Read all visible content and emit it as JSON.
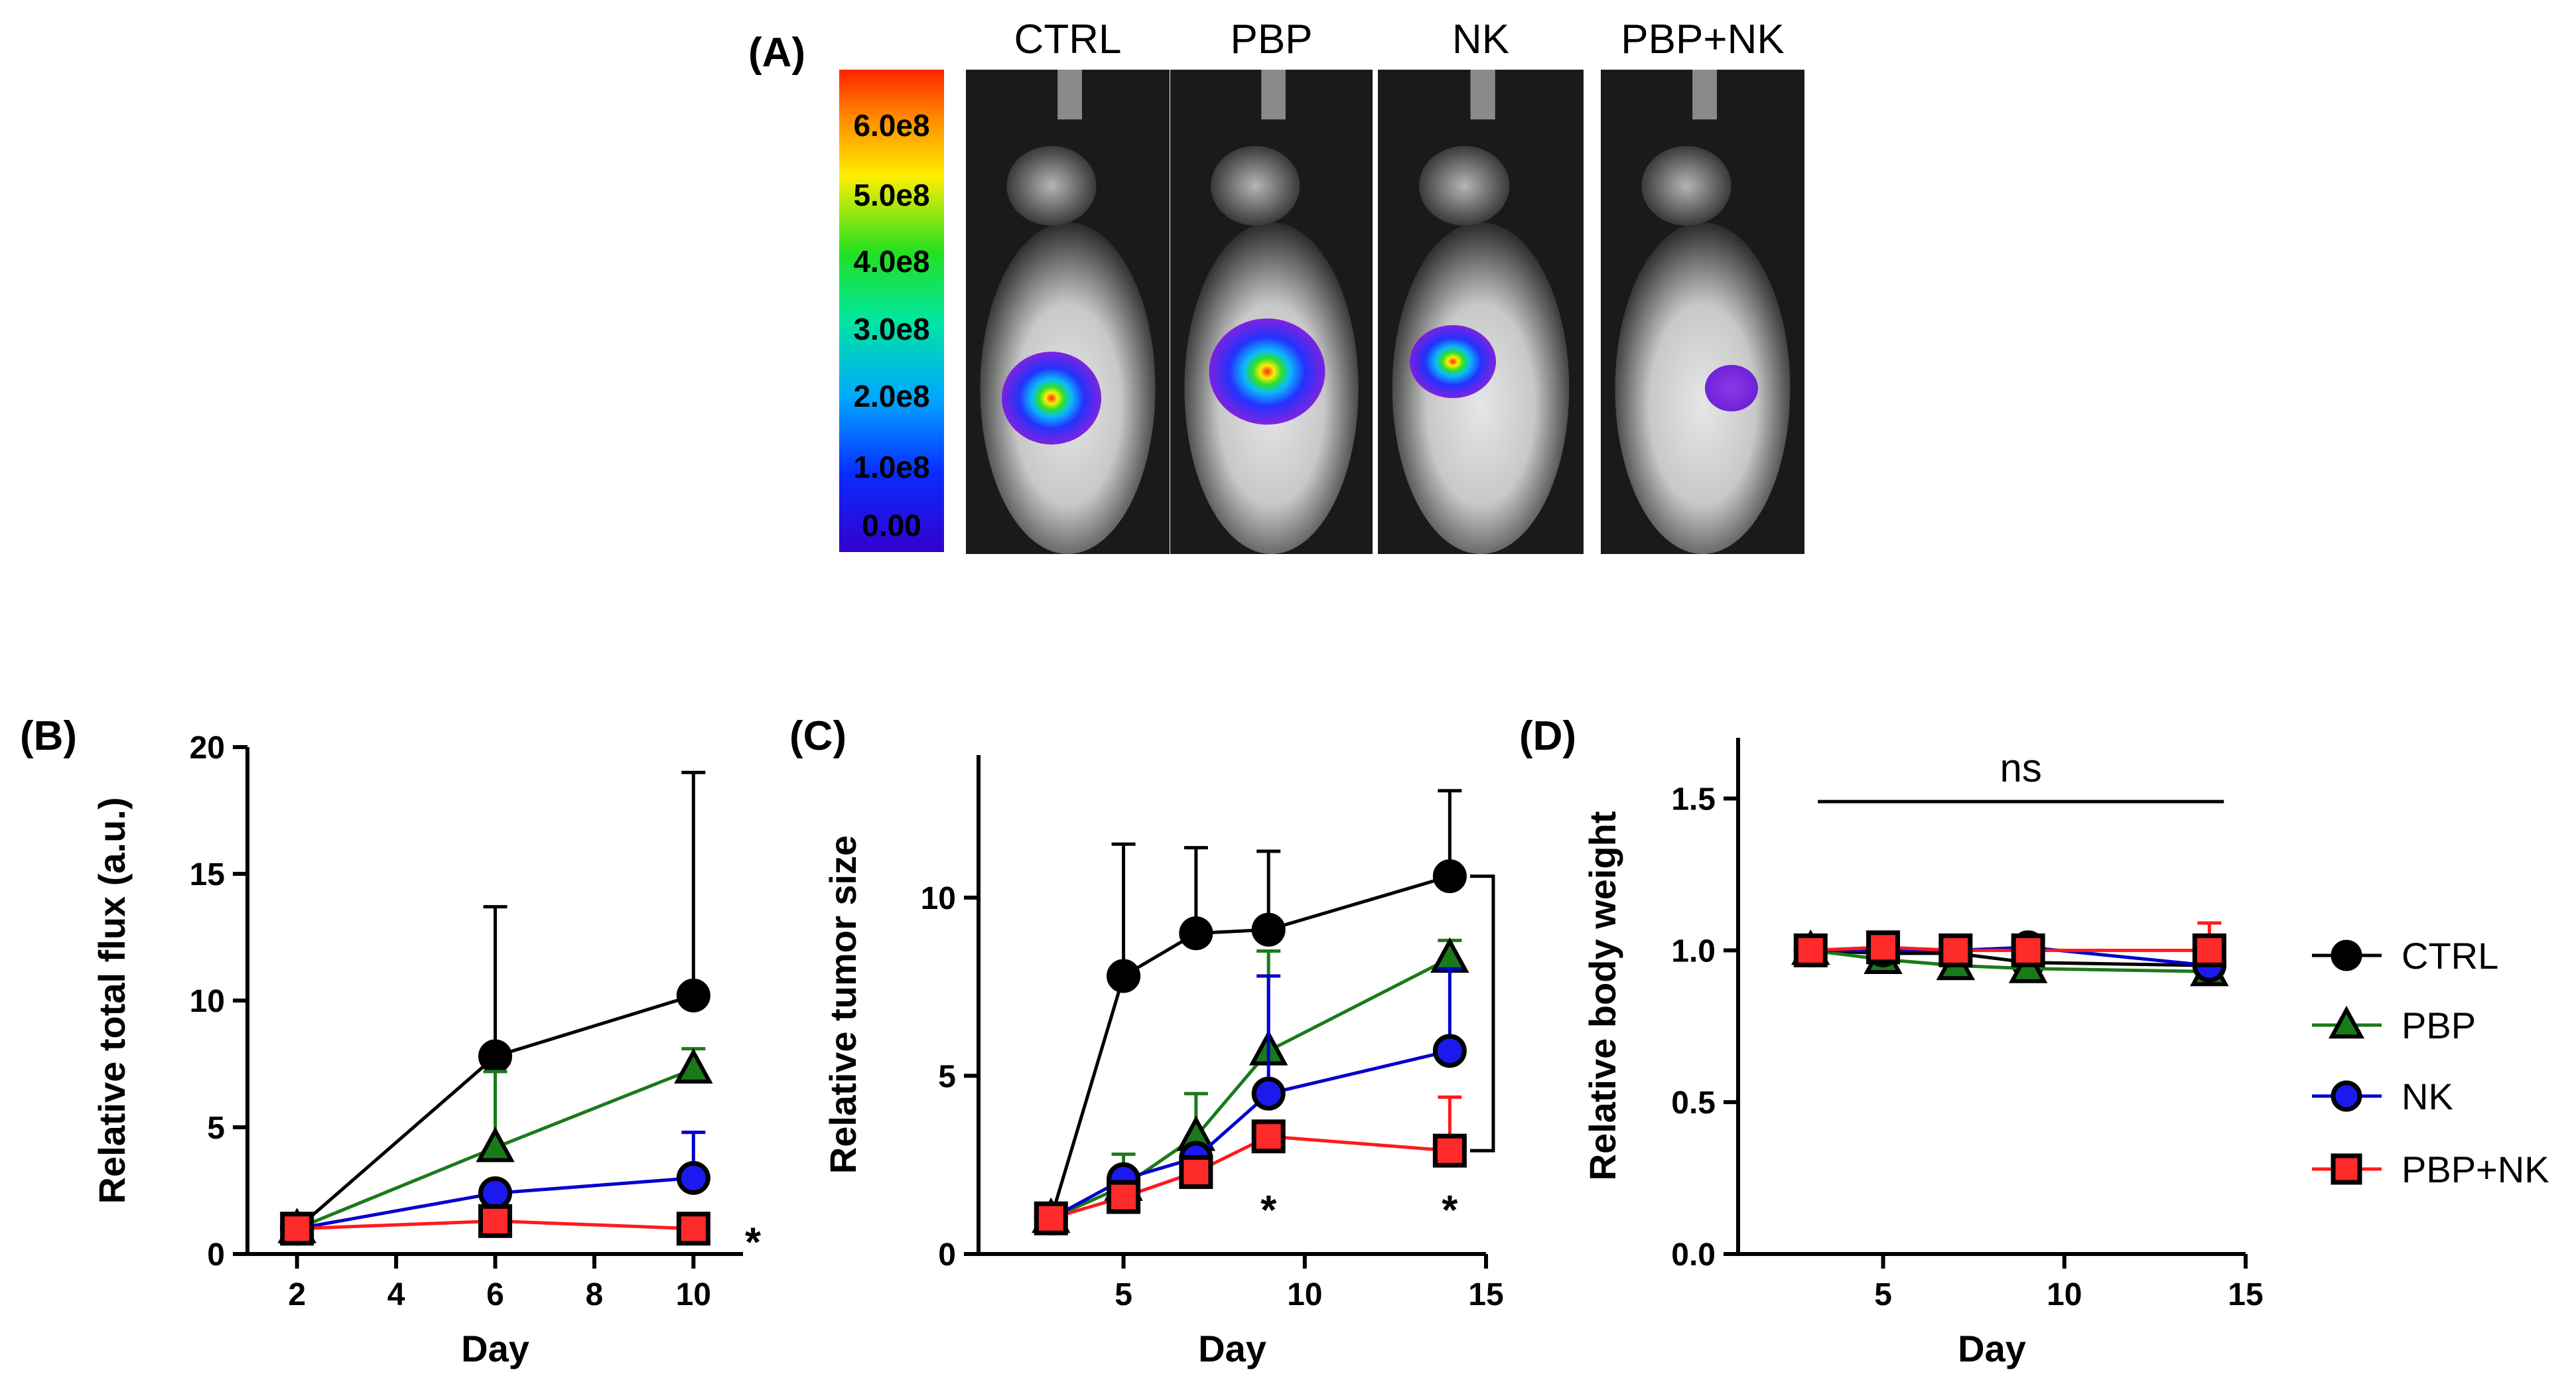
{
  "panel_a": {
    "panel_label": "(A)",
    "colorbar_ticks": [
      "6.0e8",
      "5.0e8",
      "4.0e8",
      "3.0e8",
      "2.0e8",
      "1.0e8",
      "0.00"
    ],
    "image_labels": [
      "CTRL",
      "PBP",
      "NK",
      "PBP+NK"
    ],
    "signal_intensity": [
      0.9,
      0.8,
      0.6,
      0.2
    ],
    "colors": {
      "image_bg": "#1a1a1a",
      "cb_top": "#ff2200",
      "cb_bottom": "#3300cc"
    }
  },
  "legend": {
    "items": [
      {
        "label": "CTRL",
        "color": "#000000",
        "fill": "#000000",
        "marker": "circle"
      },
      {
        "label": "PBP",
        "color": "#1a7a1a",
        "fill": "#1a7a1a",
        "marker": "triangle"
      },
      {
        "label": "NK",
        "color": "#0000cc",
        "fill": "#1a1aee",
        "marker": "circle"
      },
      {
        "label": "PBP+NK",
        "color": "#ff1a1a",
        "fill": "#ff2a2a",
        "marker": "square"
      }
    ]
  },
  "chart_data": [
    {
      "panel_label": "(B)",
      "type": "line",
      "xlabel": "Day",
      "ylabel": "Relative total flux  (a.u.)",
      "xlim": [
        1,
        11
      ],
      "ylim": [
        0,
        20
      ],
      "xticks": [
        2,
        4,
        6,
        8,
        10
      ],
      "yticks": [
        0,
        5,
        10,
        15,
        20
      ],
      "series": [
        {
          "name": "CTRL",
          "x": [
            2,
            6,
            10
          ],
          "values": [
            1,
            7.8,
            10.2
          ],
          "err": [
            0,
            5.9,
            8.8
          ]
        },
        {
          "name": "PBP",
          "x": [
            2,
            6,
            10
          ],
          "values": [
            1,
            4.2,
            7.3
          ],
          "err": [
            0,
            3.0,
            0.8
          ]
        },
        {
          "name": "NK",
          "x": [
            2,
            6,
            10
          ],
          "values": [
            1,
            2.4,
            3.0
          ],
          "err": [
            0,
            0,
            1.8
          ]
        },
        {
          "name": "PBP+NK",
          "x": [
            2,
            6,
            10
          ],
          "values": [
            1,
            1.3,
            1.0
          ],
          "err": [
            0,
            0,
            0
          ]
        }
      ],
      "annotations": [
        {
          "text": "*",
          "x": 11.2,
          "y": 0.7
        }
      ]
    },
    {
      "panel_label": "(C)",
      "type": "line",
      "xlabel": "Day",
      "ylabel": "Relative tumor size",
      "xlim": [
        1,
        15
      ],
      "ylim": [
        0,
        14
      ],
      "xticks": [
        5,
        10,
        15
      ],
      "yticks": [
        0,
        5,
        10
      ],
      "series": [
        {
          "name": "CTRL",
          "x": [
            3,
            5,
            7,
            9,
            14
          ],
          "values": [
            1,
            7.8,
            9.0,
            9.1,
            10.6
          ],
          "err": [
            0,
            3.7,
            2.4,
            2.2,
            2.4
          ]
        },
        {
          "name": "PBP",
          "x": [
            3,
            5,
            7,
            9,
            14
          ],
          "values": [
            1,
            1.9,
            3.3,
            5.7,
            8.3
          ],
          "err": [
            0,
            0.9,
            1.2,
            2.8,
            0.5
          ]
        },
        {
          "name": "NK",
          "x": [
            3,
            5,
            7,
            9,
            14
          ],
          "values": [
            1,
            2.1,
            2.7,
            4.5,
            5.7
          ],
          "err": [
            0,
            0,
            0,
            3.3,
            2.3
          ]
        },
        {
          "name": "PBP+NK",
          "x": [
            3,
            5,
            7,
            9,
            14
          ],
          "values": [
            1,
            1.6,
            2.3,
            3.3,
            2.9
          ],
          "err": [
            0,
            0,
            0,
            0.4,
            1.5
          ]
        }
      ],
      "annotations": [
        {
          "text": "*",
          "x": 9,
          "y": 1.4
        },
        {
          "text": "*",
          "x": 14,
          "y": 1.4
        }
      ],
      "bracket": {
        "x": 15.2,
        "y_top": 10.6,
        "y_bottom": 2.9
      }
    },
    {
      "panel_label": "(D)",
      "type": "line",
      "xlabel": "Day",
      "ylabel": "Relative body weight",
      "xlim": [
        1,
        15
      ],
      "ylim": [
        0,
        1.7
      ],
      "xticks": [
        5,
        10,
        15
      ],
      "yticks": [
        0.0,
        0.5,
        1.0,
        1.5
      ],
      "ytick_labels": [
        "0.0",
        "0.5",
        "1.0",
        "1.5"
      ],
      "dashed_zero": true,
      "series": [
        {
          "name": "CTRL",
          "x": [
            3,
            5,
            7,
            9,
            14
          ],
          "values": [
            1.0,
            0.99,
            0.99,
            0.96,
            0.95
          ],
          "err": [
            0,
            0.05,
            0.04,
            0.02,
            0.04
          ]
        },
        {
          "name": "PBP",
          "x": [
            3,
            5,
            7,
            9,
            14
          ],
          "values": [
            1.0,
            0.97,
            0.95,
            0.94,
            0.93
          ],
          "err": [
            0,
            0.04,
            0.07,
            0.02,
            0.05
          ]
        },
        {
          "name": "NK",
          "x": [
            3,
            5,
            7,
            9,
            14
          ],
          "values": [
            1.0,
            1.0,
            1.0,
            1.01,
            0.95
          ],
          "err": [
            0,
            0.03,
            0.03,
            0.02,
            0.04
          ]
        },
        {
          "name": "PBP+NK",
          "x": [
            3,
            5,
            7,
            9,
            14
          ],
          "values": [
            1.0,
            1.01,
            1.0,
            1.0,
            1.0
          ],
          "err": [
            0,
            0.02,
            0.02,
            0.02,
            0.09
          ]
        }
      ],
      "ns_line": {
        "label": "ns",
        "x_start": 3.2,
        "x_end": 14.4,
        "y": 1.49
      }
    }
  ]
}
